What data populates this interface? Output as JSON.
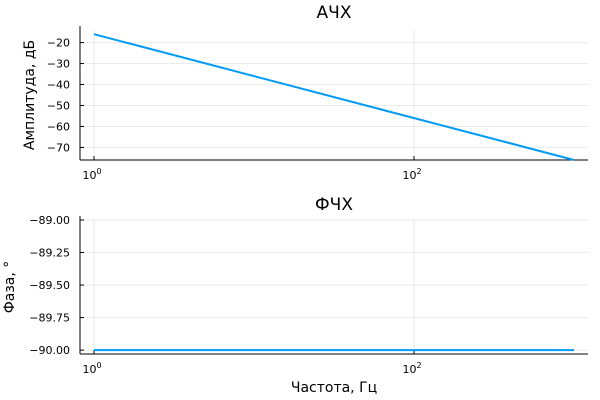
{
  "chart_data": [
    {
      "type": "line",
      "title": "АЧХ",
      "xlabel": "",
      "ylabel": "Амплитуда, дБ",
      "xscale": "log",
      "xlim": [
        1,
        1000
      ],
      "ylim": [
        -76,
        -14
      ],
      "xticks": [
        {
          "base": "10",
          "exp": "0",
          "value": 1
        },
        {
          "base": "10",
          "exp": "2",
          "value": 100
        }
      ],
      "yticks": [
        {
          "label": "−20",
          "value": -20
        },
        {
          "label": "−30",
          "value": -30
        },
        {
          "label": "−40",
          "value": -40
        },
        {
          "label": "−50",
          "value": -50
        },
        {
          "label": "−60",
          "value": -60
        },
        {
          "label": "−70",
          "value": -70
        }
      ],
      "grid": true,
      "legend": "none",
      "color": "#009AF9",
      "series": [
        {
          "x": [
            1,
            1000
          ],
          "y": [
            -16,
            -76
          ]
        }
      ]
    },
    {
      "type": "line",
      "title": "ФЧХ",
      "xlabel": "Частота, Гц",
      "ylabel": "Фаза, °",
      "xscale": "log",
      "xlim": [
        1,
        1000
      ],
      "ylim": [
        -90.03,
        -89.0
      ],
      "xticks": [
        {
          "base": "10",
          "exp": "0",
          "value": 1
        },
        {
          "base": "10",
          "exp": "2",
          "value": 100
        }
      ],
      "yticks": [
        {
          "label": "−89.00",
          "value": -89.0
        },
        {
          "label": "−89.25",
          "value": -89.25
        },
        {
          "label": "−89.50",
          "value": -89.5
        },
        {
          "label": "−89.75",
          "value": -89.75
        },
        {
          "label": "−90.00",
          "value": -90.0
        }
      ],
      "grid": true,
      "legend": "none",
      "color": "#009AF9",
      "series": [
        {
          "x": [
            1,
            1000
          ],
          "y": [
            -90,
            -90
          ]
        }
      ]
    }
  ]
}
